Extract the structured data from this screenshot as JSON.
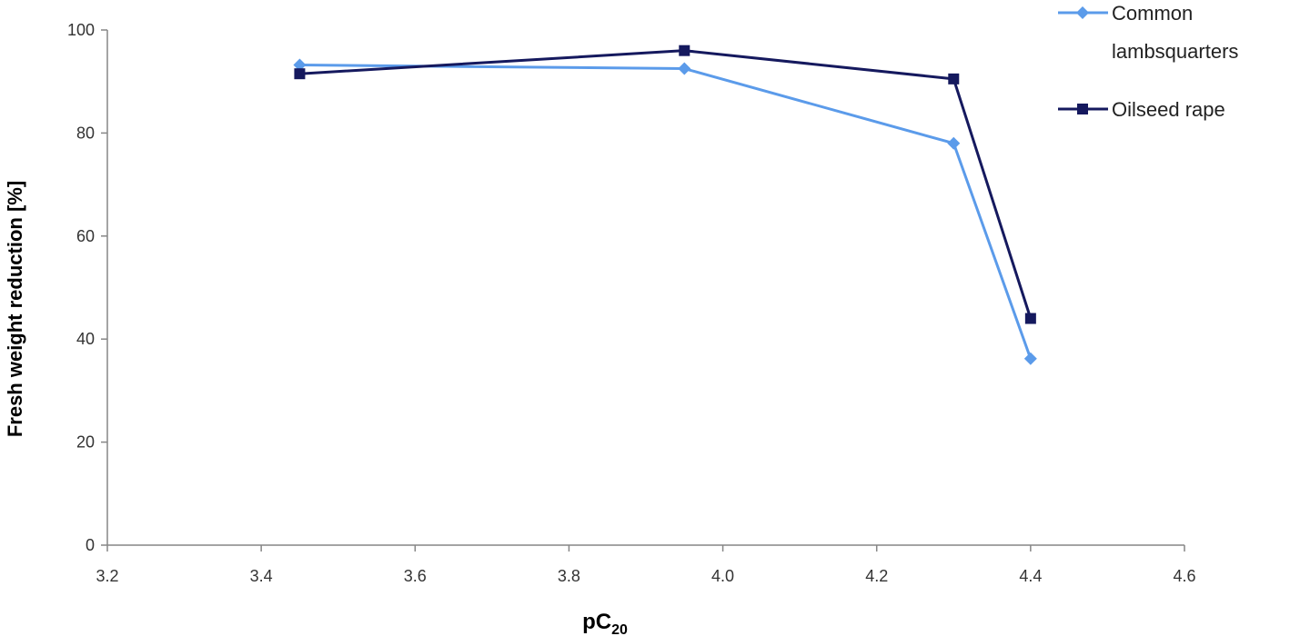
{
  "chart_data": {
    "type": "line",
    "title": "",
    "xlabel": "pC",
    "xlabel_subscript": "20",
    "ylabel": "Fresh weight reduction  [%]",
    "xlim": [
      3.2,
      4.6
    ],
    "ylim": [
      0,
      100
    ],
    "x_ticks": [
      "3.2",
      "3.4",
      "3.6",
      "3.8",
      "4.0",
      "4.2",
      "4.4",
      "4.6"
    ],
    "y_ticks": [
      "0",
      "20",
      "40",
      "60",
      "80",
      "100"
    ],
    "grid": false,
    "legend_position": "top-right",
    "series": [
      {
        "name_lines": [
          "Common",
          "lambsquarters"
        ],
        "marker": "diamond",
        "color": "#5B9BEA",
        "x": [
          3.45,
          3.95,
          4.3,
          4.4
        ],
        "y": [
          93.2,
          92.5,
          78,
          36.2
        ]
      },
      {
        "name_lines": [
          "Oilseed rape"
        ],
        "marker": "square",
        "color": "#15195E",
        "x": [
          3.45,
          3.95,
          4.3,
          4.4
        ],
        "y": [
          91.5,
          96,
          90.5,
          44
        ]
      }
    ]
  }
}
